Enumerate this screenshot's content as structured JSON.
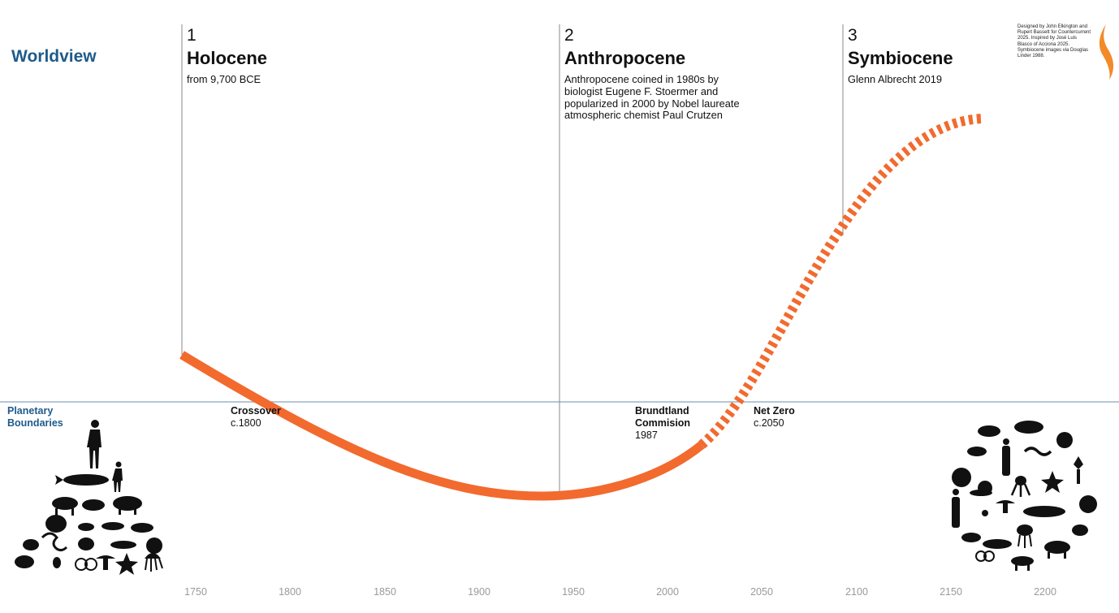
{
  "header": {
    "worldview_label": "Worldview",
    "planetary_boundaries_label": "Planetary\nBoundaries"
  },
  "eras": [
    {
      "number": "1",
      "title": "Holocene",
      "description": "from 9,700 BCE"
    },
    {
      "number": "2",
      "title": "Anthropocene",
      "description": "Anthropocene coined in 1980s by\nbiologist Eugene F. Stoermer and\npopularized in 2000 by Nobel laureate\natmospheric chemist Paul Crutzen"
    },
    {
      "number": "3",
      "title": "Symbiocene",
      "description": "Glenn Albrecht 2019"
    }
  ],
  "credit": "Designed by John Elkington and Rupert Bassett for Countercurrent 2025. Inspired by José Luis Blasco of Acciona 2025. Symbiocene images via Douglas Linder 1988.",
  "milestones": [
    {
      "name": "Crossover",
      "date": "c.1800"
    },
    {
      "name": "Brundtland\nCommision",
      "date": "1987"
    },
    {
      "name": "Net Zero",
      "date": "c.2050"
    }
  ],
  "x_axis": {
    "ticks": [
      "1750",
      "1800",
      "1850",
      "1900",
      "1950",
      "2000",
      "2050",
      "2100",
      "2150",
      "2200"
    ]
  },
  "colors": {
    "accent": "#f26a2e",
    "title_blue": "#1f5a8a",
    "divider": "#8a8a8a",
    "baseline": "#8aa3bf",
    "tick_gray": "#9a9a9a"
  },
  "icons": [
    "flame-icon",
    "human-silhouette-icon",
    "animal-silhouettes-icon"
  ]
}
